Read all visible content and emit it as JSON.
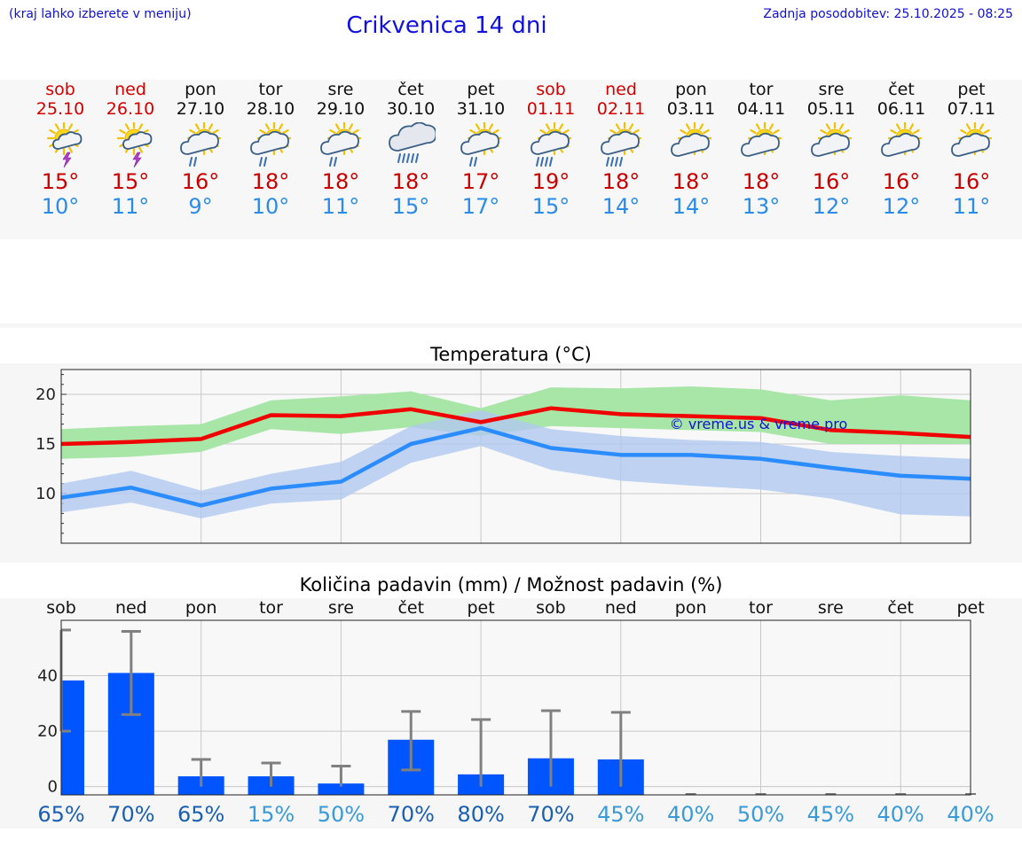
{
  "header": {
    "hint": "(kraj lahko izberete v meniju)",
    "title": "Crikvenica 14 dni",
    "updated": "Zadnja posodobitev: 25.10.2025 - 08:25"
  },
  "colors": {
    "weekend": "#d40000",
    "tmax": "#c80000",
    "tmin": "#2a8ce8",
    "max_line": "#f00000",
    "min_line": "#2a8cff",
    "max_band": "#a8e6a8",
    "min_band": "#b0c8f0",
    "bar": "#0055ff",
    "pct_high": "#1a5fb0",
    "pct_low": "#3a9ad8"
  },
  "days": [
    {
      "name": "sob",
      "date": "25.10",
      "weekend": true,
      "icon": "sun-cloud-thunder-icon",
      "tmax": "15°",
      "tmin": "10°"
    },
    {
      "name": "ned",
      "date": "26.10",
      "weekend": true,
      "icon": "sun-cloud-thunder-icon",
      "tmax": "15°",
      "tmin": "11°"
    },
    {
      "name": "pon",
      "date": "27.10",
      "weekend": false,
      "icon": "sun-cloud-rain-icon",
      "tmax": "16°",
      "tmin": "9°"
    },
    {
      "name": "tor",
      "date": "28.10",
      "weekend": false,
      "icon": "sun-cloud-rain-icon",
      "tmax": "18°",
      "tmin": "10°"
    },
    {
      "name": "sre",
      "date": "29.10",
      "weekend": false,
      "icon": "sun-cloud-rain-icon",
      "tmax": "18°",
      "tmin": "11°"
    },
    {
      "name": "čet",
      "date": "30.10",
      "weekend": false,
      "icon": "cloud-heavy-rain-icon",
      "tmax": "18°",
      "tmin": "15°"
    },
    {
      "name": "pet",
      "date": "31.10",
      "weekend": false,
      "icon": "sun-cloud-rain-icon",
      "tmax": "17°",
      "tmin": "17°"
    },
    {
      "name": "sob",
      "date": "01.11",
      "weekend": true,
      "icon": "sun-cloud-heavy-rain-icon",
      "tmax": "19°",
      "tmin": "15°"
    },
    {
      "name": "ned",
      "date": "02.11",
      "weekend": true,
      "icon": "sun-cloud-heavy-rain-icon",
      "tmax": "18°",
      "tmin": "14°"
    },
    {
      "name": "pon",
      "date": "03.11",
      "weekend": false,
      "icon": "sun-cloud-icon",
      "tmax": "18°",
      "tmin": "14°"
    },
    {
      "name": "tor",
      "date": "04.11",
      "weekend": false,
      "icon": "sun-cloud-icon",
      "tmax": "18°",
      "tmin": "13°"
    },
    {
      "name": "sre",
      "date": "05.11",
      "weekend": false,
      "icon": "sun-cloud-icon",
      "tmax": "16°",
      "tmin": "12°"
    },
    {
      "name": "čet",
      "date": "06.11",
      "weekend": false,
      "icon": "sun-cloud-icon",
      "tmax": "16°",
      "tmin": "12°"
    },
    {
      "name": "pet",
      "date": "07.11",
      "weekend": false,
      "icon": "sun-cloud-icon",
      "tmax": "16°",
      "tmin": "11°"
    }
  ],
  "chart_data": [
    {
      "type": "line",
      "title": "Temperatura (°C)",
      "watermark": "© vreme.us & vreme.pro",
      "x": [
        0,
        1,
        2,
        3,
        4,
        5,
        6,
        7,
        8,
        9,
        10,
        11,
        12,
        13
      ],
      "ylim": [
        5,
        22.5
      ],
      "yticks": [
        10,
        15,
        20
      ],
      "grid": true,
      "series": [
        {
          "values": [
            15.0,
            15.2,
            15.5,
            17.9,
            17.8,
            18.5,
            17.2,
            18.6,
            18.0,
            17.8,
            17.6,
            16.4,
            16.1,
            15.7
          ],
          "band_low": [
            13.5,
            13.7,
            14.2,
            16.5,
            16.0,
            16.7,
            15.8,
            16.8,
            16.6,
            16.4,
            16.2,
            15.0,
            15.0,
            15.0
          ],
          "band_high": [
            16.5,
            16.8,
            17.0,
            19.4,
            19.8,
            20.3,
            18.6,
            20.7,
            20.6,
            20.8,
            20.5,
            19.4,
            19.9,
            19.4
          ]
        },
        {
          "values": [
            9.6,
            10.6,
            8.8,
            10.5,
            11.2,
            15.0,
            16.6,
            14.6,
            13.9,
            13.9,
            13.5,
            12.6,
            11.8,
            11.5
          ],
          "band_low": [
            8.1,
            9.1,
            7.5,
            9.0,
            9.4,
            13.1,
            14.8,
            12.4,
            11.3,
            10.8,
            10.4,
            9.5,
            7.9,
            7.7
          ],
          "band_high": [
            11.0,
            12.3,
            10.3,
            12.0,
            13.2,
            16.8,
            18.4,
            16.5,
            15.8,
            15.4,
            15.2,
            14.2,
            13.8,
            13.5
          ]
        }
      ]
    },
    {
      "type": "bar",
      "title": "Količina padavin (mm) / Možnost padavin (%)",
      "categories": [
        "sob",
        "ned",
        "pon",
        "tor",
        "sre",
        "čet",
        "pet",
        "sob",
        "ned",
        "pon",
        "tor",
        "sre",
        "čet",
        "pet"
      ],
      "values": [
        38.3,
        41.0,
        3.7,
        3.7,
        1.1,
        16.9,
        4.4,
        10.2,
        9.8,
        0,
        0,
        0,
        0,
        0
      ],
      "error_low": [
        20,
        26,
        0,
        0,
        0,
        6,
        0,
        0,
        0,
        0,
        0,
        0,
        0,
        0
      ],
      "error_high": [
        56.5,
        56,
        9.8,
        8.5,
        7.4,
        27.1,
        24.2,
        27.4,
        26.8,
        0,
        0,
        0,
        0,
        0
      ],
      "percent": [
        "65%",
        "70%",
        "65%",
        "15%",
        "50%",
        "70%",
        "80%",
        "70%",
        "45%",
        "40%",
        "50%",
        "45%",
        "40%",
        "40%"
      ],
      "ylim": [
        -3,
        60
      ],
      "yticks": [
        0,
        20,
        40
      ],
      "grid": true
    }
  ]
}
